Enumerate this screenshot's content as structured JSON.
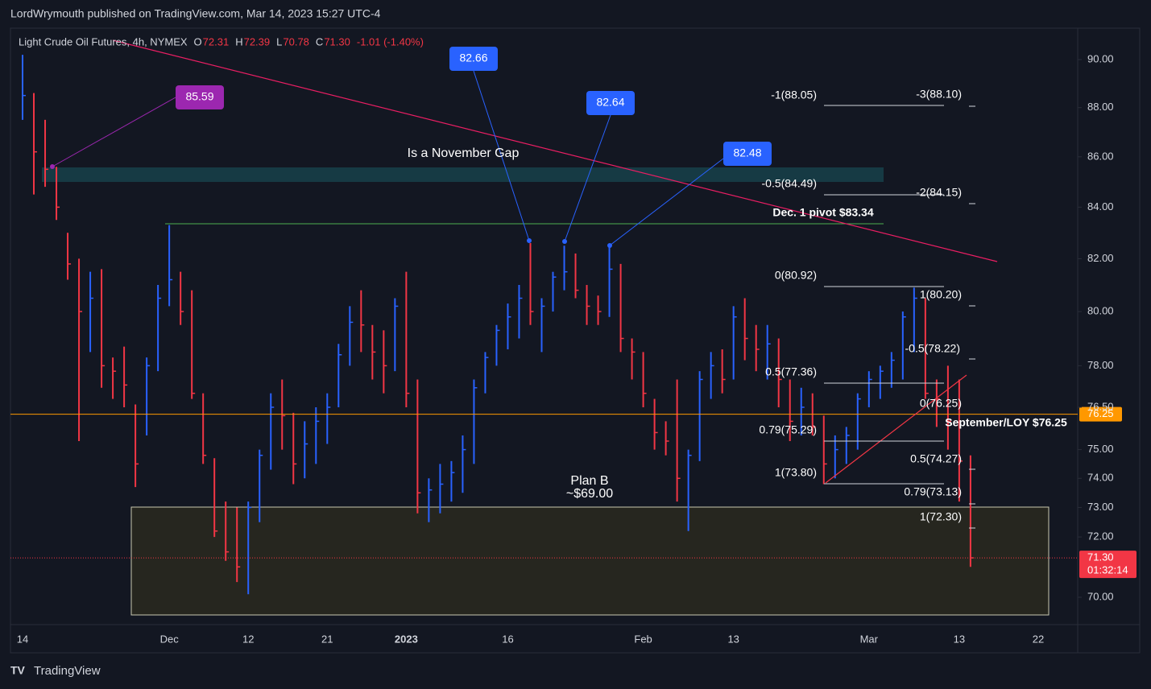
{
  "header": "LordWrymouth published on TradingView.com, Mar 14, 2023 15:27 UTC-4",
  "footer": "TradingView",
  "chart_data": {
    "type": "ohlc",
    "title": "Light Crude Oil Futures, 4h, NYMEX",
    "legend": [
      {
        "key": "O",
        "value": "72.31"
      },
      {
        "key": "H",
        "value": "72.39"
      },
      {
        "key": "L",
        "value": "70.78"
      },
      {
        "key": "C",
        "value": "71.30"
      }
    ],
    "change": "-1.01 (-1.40%)",
    "categories": [
      "14",
      null,
      null,
      null,
      null,
      null,
      null,
      null,
      null,
      null,
      null,
      null,
      null,
      "Dec",
      null,
      null,
      null,
      null,
      null,
      null,
      "12",
      null,
      null,
      null,
      null,
      null,
      null,
      "21",
      null,
      null,
      null,
      null,
      null,
      null,
      "2023",
      null,
      null,
      null,
      null,
      null,
      null,
      null,
      null,
      "16",
      null,
      null,
      null,
      null,
      null,
      null,
      null,
      null,
      null,
      null,
      null,
      "Feb",
      null,
      null,
      null,
      null,
      null,
      null,
      null,
      "13",
      null,
      null,
      null,
      null,
      null,
      null,
      null,
      null,
      null,
      null,
      null,
      "Mar",
      null,
      null,
      null,
      null,
      null,
      null,
      null,
      "13",
      null,
      null,
      null,
      null,
      null,
      null,
      "22",
      null,
      null,
      null
    ],
    "high": [
      90.2,
      88.6,
      87.5,
      85.6,
      83.0,
      82.0,
      81.5,
      81.6,
      78.3,
      78.7,
      76.6,
      78.3,
      81.0,
      83.3,
      81.5,
      80.8,
      77.0,
      74.7,
      73.2,
      73.0,
      73.2,
      75.0,
      77.0,
      77.5,
      76.3,
      76.0,
      76.5,
      77.0,
      78.8,
      80.2,
      80.8,
      79.5,
      79.3,
      80.5,
      81.5,
      77.5,
      74.0,
      74.5,
      74.6,
      75.5,
      77.5,
      78.5,
      79.5,
      80.3,
      81.0,
      82.6,
      80.5,
      81.5,
      82.5,
      82.2,
      81.0,
      80.6,
      82.5,
      81.8,
      79.0,
      78.5,
      76.8,
      76.0,
      77.5,
      75.0,
      77.8,
      78.5,
      78.6,
      80.2,
      80.5,
      79.5,
      79.5,
      79.0,
      77.5,
      77.2,
      77.0,
      76.2,
      75.5,
      75.8,
      77.0,
      77.8,
      78.0,
      78.5,
      80.0,
      80.9,
      80.5,
      77.5,
      78.0,
      77.5,
      74.8,
      null,
      null,
      null,
      null,
      null,
      null,
      null,
      null,
      null
    ],
    "low": [
      87.5,
      84.5,
      84.8,
      83.5,
      81.2,
      75.3,
      78.5,
      77.2,
      76.8,
      76.5,
      73.7,
      75.5,
      77.8,
      80.2,
      79.5,
      76.8,
      74.5,
      72.0,
      71.2,
      70.5,
      70.1,
      72.5,
      74.3,
      75.0,
      73.8,
      74.0,
      74.5,
      75.2,
      76.5,
      78.0,
      78.5,
      77.5,
      77.0,
      77.8,
      76.5,
      72.8,
      72.5,
      72.8,
      73.2,
      73.5,
      74.5,
      77.0,
      78.0,
      78.6,
      79.0,
      79.5,
      78.5,
      80.0,
      80.8,
      80.5,
      79.5,
      79.5,
      79.8,
      78.5,
      77.5,
      76.5,
      75.0,
      74.8,
      73.2,
      72.2,
      74.6,
      76.8,
      77.0,
      77.5,
      78.2,
      77.8,
      77.5,
      76.5,
      75.3,
      75.5,
      75.5,
      73.8,
      74.0,
      74.5,
      75.0,
      76.5,
      76.8,
      77.2,
      77.5,
      78.5,
      76.8,
      75.8,
      75.0,
      73.2,
      71.0,
      null,
      null,
      null,
      null,
      null,
      null,
      null,
      null,
      null
    ],
    "close": [
      88.5,
      86.2,
      85.5,
      84.0,
      81.8,
      80.0,
      80.5,
      78.0,
      77.8,
      77.3,
      74.5,
      78.0,
      80.5,
      81.2,
      80.0,
      77.0,
      74.8,
      72.2,
      71.5,
      71.0,
      73.0,
      74.8,
      76.5,
      76.2,
      74.5,
      75.2,
      76.0,
      76.5,
      78.4,
      79.6,
      79.5,
      78.5,
      78.0,
      80.2,
      77.0,
      73.5,
      73.6,
      73.8,
      74.2,
      75.0,
      77.2,
      78.3,
      79.3,
      79.8,
      80.5,
      80.0,
      80.2,
      81.3,
      81.5,
      80.8,
      80.2,
      80.0,
      81.6,
      79.0,
      78.5,
      77.0,
      75.6,
      75.3,
      74.0,
      74.8,
      77.5,
      78.0,
      77.5,
      79.8,
      79.0,
      78.6,
      78.8,
      77.5,
      76.0,
      76.5,
      75.8,
      74.5,
      75.0,
      75.5,
      76.8,
      77.5,
      77.8,
      78.2,
      79.8,
      80.5,
      77.0,
      76.8,
      76.0,
      74.6,
      71.3,
      null,
      null,
      null,
      null,
      null,
      null,
      null,
      null,
      null
    ],
    "up_color": "#2962ff",
    "down_color": "#f23645",
    "log": true,
    "ylim": [
      69.11,
      91.33
    ],
    "yticks": [
      {
        "value": 70,
        "label": "70.00"
      },
      {
        "value": 72,
        "label": "72.00"
      },
      {
        "value": 73,
        "label": "73.00"
      },
      {
        "value": 74,
        "label": "74.00"
      },
      {
        "value": 75,
        "label": "75.00"
      },
      {
        "value": 76.5,
        "label": "76.50"
      },
      {
        "value": 78,
        "label": "78.00"
      },
      {
        "value": 80,
        "label": "80.00"
      },
      {
        "value": 82,
        "label": "82.00"
      },
      {
        "value": 84,
        "label": "84.00"
      },
      {
        "value": 86,
        "label": "86.00"
      },
      {
        "value": 88,
        "label": "88.00"
      },
      {
        "value": 90,
        "label": "90.00"
      }
    ],
    "price_lines": [
      {
        "value": 76.25,
        "label": "76.25",
        "color": "#ff9800"
      },
      {
        "value": 71.3,
        "label": "71.30",
        "countdown": "01:32:14",
        "color": "#f23645"
      }
    ],
    "annotations": [
      "85.59",
      "82.66",
      "82.64",
      "82.48",
      "Is a November Gap",
      "Dec. 1 pivot $83.34",
      "September/LOY $76.25",
      "Plan B",
      "~$69.00",
      "-1(88.05)",
      "-3(88.10)",
      "-0.5(84.49)",
      "-2(84.15)",
      "0(80.92)",
      "1(80.20)",
      "-0.5(78.22)",
      "0.5(77.36)",
      "0(76.25)",
      "0.79(75.29)",
      "0.5(74.27)",
      "1(73.80)",
      "0.79(73.13)",
      "1(72.30)"
    ]
  }
}
